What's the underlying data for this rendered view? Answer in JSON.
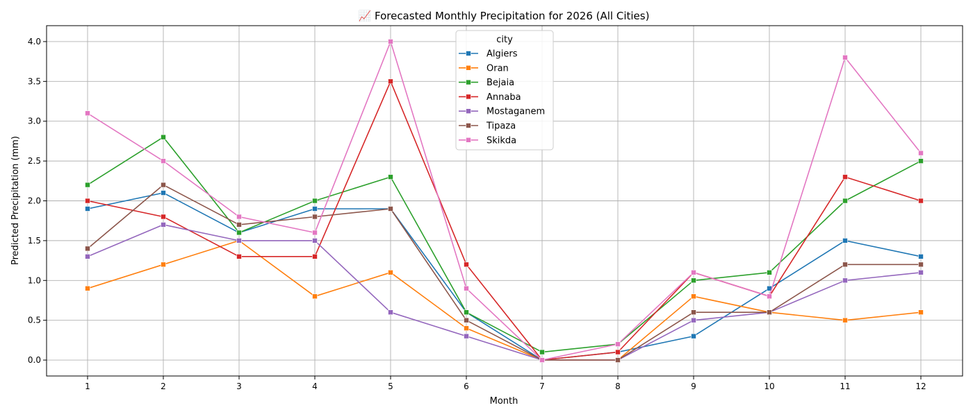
{
  "chart_data": {
    "type": "line",
    "title": "📈 Forecasted Monthly Precipitation for 2026 (All Cities)",
    "xlabel": "Month",
    "ylabel": "Predicted Precipitation (mm)",
    "x": [
      1,
      2,
      3,
      4,
      5,
      6,
      7,
      8,
      9,
      10,
      11,
      12
    ],
    "x_tick_labels": [
      "1",
      "2",
      "3",
      "4",
      "5",
      "6",
      "7",
      "8",
      "9",
      "10",
      "11",
      "12"
    ],
    "ylim": [
      -0.2,
      4.2
    ],
    "y_ticks": [
      0.0,
      0.5,
      1.0,
      1.5,
      2.0,
      2.5,
      3.0,
      3.5,
      4.0
    ],
    "y_tick_labels": [
      "0.0",
      "0.5",
      "1.0",
      "1.5",
      "2.0",
      "2.5",
      "3.0",
      "3.5",
      "4.0"
    ],
    "grid": true,
    "legend_title": "city",
    "legend_position": "top-center",
    "marker": "square",
    "series": [
      {
        "name": "Algiers",
        "color": "#1f77b4",
        "values": [
          1.9,
          2.1,
          1.6,
          1.9,
          1.9,
          0.6,
          0.0,
          0.1,
          0.3,
          0.9,
          1.5,
          1.3
        ]
      },
      {
        "name": "Oran",
        "color": "#ff7f0e",
        "values": [
          0.9,
          1.2,
          1.5,
          0.8,
          1.1,
          0.4,
          0.0,
          0.0,
          0.8,
          0.6,
          0.5,
          0.6
        ]
      },
      {
        "name": "Bejaia",
        "color": "#2ca02c",
        "values": [
          2.2,
          2.8,
          1.6,
          2.0,
          2.3,
          0.6,
          0.1,
          0.2,
          1.0,
          1.1,
          2.0,
          2.5
        ]
      },
      {
        "name": "Annaba",
        "color": "#d62728",
        "values": [
          2.0,
          1.8,
          1.3,
          1.3,
          3.5,
          1.2,
          0.0,
          0.1,
          1.1,
          0.8,
          2.3,
          2.0
        ]
      },
      {
        "name": "Mostaganem",
        "color": "#9467bd",
        "values": [
          1.3,
          1.7,
          1.5,
          1.5,
          0.6,
          0.3,
          0.0,
          0.0,
          0.5,
          0.6,
          1.0,
          1.1
        ]
      },
      {
        "name": "Tipaza",
        "color": "#8c564b",
        "values": [
          1.4,
          2.2,
          1.7,
          1.8,
          1.9,
          0.5,
          0.0,
          0.0,
          0.6,
          0.6,
          1.2,
          1.2
        ]
      },
      {
        "name": "Skikda",
        "color": "#e377c2",
        "values": [
          3.1,
          2.5,
          1.8,
          1.6,
          4.0,
          0.9,
          0.0,
          0.2,
          1.1,
          0.8,
          3.8,
          2.6
        ]
      }
    ]
  }
}
